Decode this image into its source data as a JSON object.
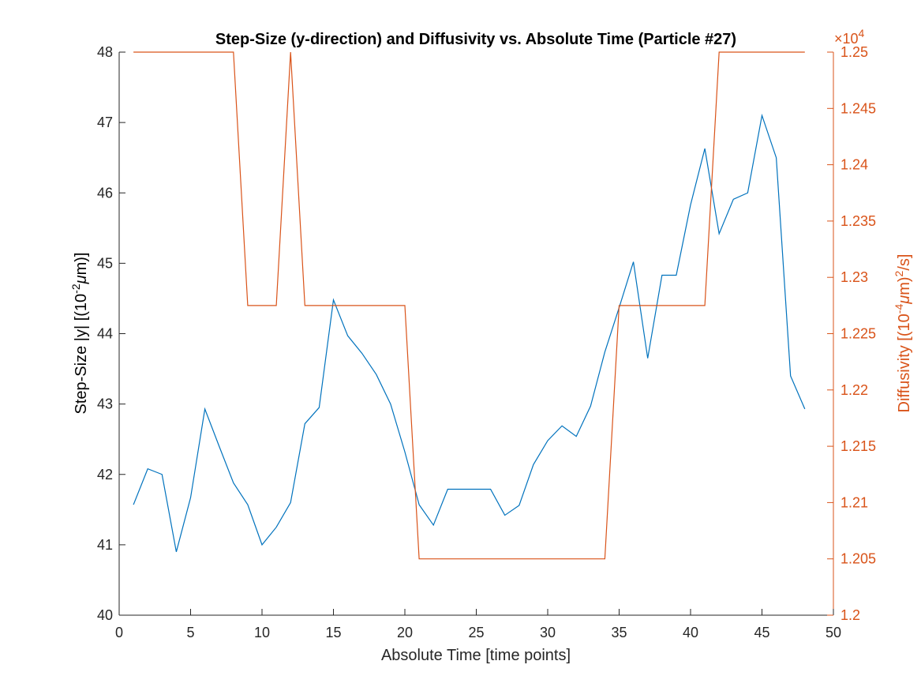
{
  "chart_data": {
    "type": "line",
    "title": "Step-Size (y-direction) and Diffusivity vs. Absolute Time (Particle #27)",
    "xlabel": "Absolute Time [time points]",
    "ylabel_left": {
      "prefix": "Step-Size |y| [(10",
      "exp": "-2",
      "mu": "μ",
      "suffix": "m)]"
    },
    "ylabel_right": {
      "prefix": "Diffusivity [(10",
      "exp1": "-4",
      "mu": "μ",
      "mid": "m)",
      "exp2": "2",
      "suffix": "/s]"
    },
    "right_exponent": {
      "times": "×10",
      "power": "4"
    },
    "xlim": [
      0,
      50
    ],
    "ylim_left": [
      40,
      48
    ],
    "ylim_right": [
      1.2,
      1.25
    ],
    "xticks": [
      0,
      5,
      10,
      15,
      20,
      25,
      30,
      35,
      40,
      45,
      50
    ],
    "xtick_labels": [
      "0",
      "5",
      "10",
      "15",
      "20",
      "25",
      "30",
      "35",
      "40",
      "45",
      "50"
    ],
    "yticks_left": [
      40,
      41,
      42,
      43,
      44,
      45,
      46,
      47,
      48
    ],
    "ytick_labels_left": [
      "40",
      "41",
      "42",
      "43",
      "44",
      "45",
      "46",
      "47",
      "48"
    ],
    "yticks_right": [
      1.2,
      1.205,
      1.21,
      1.215,
      1.22,
      1.225,
      1.23,
      1.235,
      1.24,
      1.245,
      1.25
    ],
    "ytick_labels_right": [
      "1.2",
      "1.205",
      "1.21",
      "1.215",
      "1.22",
      "1.225",
      "1.23",
      "1.235",
      "1.24",
      "1.245",
      "1.25"
    ],
    "grid": false,
    "colors": {
      "left": "#0072BD",
      "right": "#D95319",
      "axis": "#262626"
    },
    "series": [
      {
        "axis": "left",
        "x": [
          1,
          2,
          3,
          4,
          5,
          6,
          7,
          8,
          9,
          10,
          11,
          12,
          13,
          14,
          15,
          16,
          17,
          18,
          19,
          20,
          21,
          22,
          23,
          24,
          25,
          26,
          27,
          28,
          29,
          30,
          31,
          32,
          33,
          34,
          35,
          36,
          37,
          38,
          39,
          40,
          41,
          42,
          43,
          44,
          45,
          46,
          47,
          48
        ],
        "values": [
          41.57,
          42.08,
          42.0,
          40.9,
          41.67,
          42.93,
          42.4,
          41.88,
          41.57,
          41.0,
          41.25,
          41.6,
          42.72,
          42.95,
          44.48,
          43.97,
          43.72,
          43.42,
          43.0,
          42.32,
          41.57,
          41.28,
          41.79,
          41.79,
          41.79,
          41.79,
          41.42,
          41.56,
          42.14,
          42.48,
          42.69,
          42.54,
          42.97,
          43.74,
          44.37,
          45.02,
          43.65,
          44.83,
          44.83,
          45.83,
          46.63,
          45.42,
          45.91,
          46.0,
          47.1,
          46.5,
          43.4,
          42.93
        ]
      },
      {
        "axis": "right",
        "x": [
          1,
          2,
          3,
          4,
          5,
          6,
          7,
          8,
          9,
          10,
          11,
          12,
          13,
          14,
          15,
          16,
          17,
          18,
          19,
          20,
          21,
          22,
          23,
          24,
          25,
          26,
          27,
          28,
          29,
          30,
          31,
          32,
          33,
          34,
          35,
          36,
          37,
          38,
          39,
          40,
          41,
          42,
          43,
          44,
          45,
          46,
          47,
          48
        ],
        "values": [
          1.25,
          1.25,
          1.25,
          1.25,
          1.25,
          1.25,
          1.25,
          1.25,
          1.2275,
          1.2275,
          1.2275,
          1.25,
          1.2275,
          1.2275,
          1.2275,
          1.2275,
          1.2275,
          1.2275,
          1.2275,
          1.2275,
          1.205,
          1.205,
          1.205,
          1.205,
          1.205,
          1.205,
          1.205,
          1.205,
          1.205,
          1.205,
          1.205,
          1.205,
          1.205,
          1.205,
          1.2275,
          1.2275,
          1.2275,
          1.2275,
          1.2275,
          1.2275,
          1.2275,
          1.25,
          1.25,
          1.25,
          1.25,
          1.25,
          1.25,
          1.25
        ]
      }
    ]
  }
}
